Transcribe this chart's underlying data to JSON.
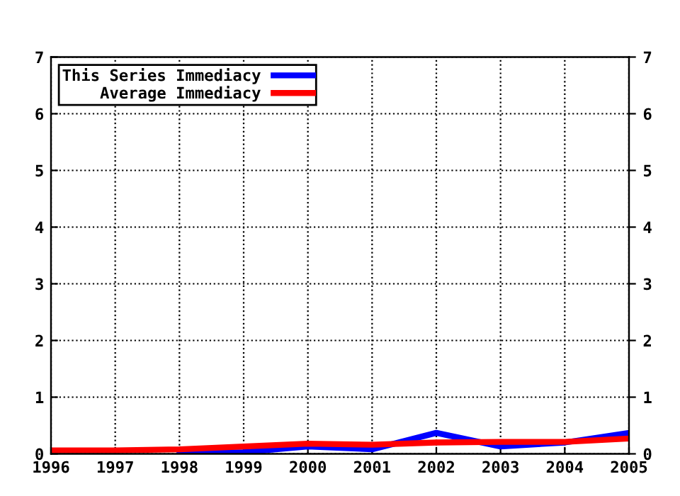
{
  "chart_data": {
    "type": "line",
    "x": [
      1996,
      1997,
      1998,
      1999,
      2000,
      2001,
      2002,
      2003,
      2004,
      2005
    ],
    "series": [
      {
        "name": "This Series Immediacy",
        "color": "#0000ff",
        "values": [
          null,
          null,
          0.02,
          0.03,
          0.13,
          0.08,
          0.37,
          0.13,
          0.2,
          0.37
        ]
      },
      {
        "name": "Average Immediacy",
        "color": "#ff0000",
        "values": [
          0.06,
          0.06,
          0.08,
          0.13,
          0.18,
          0.16,
          0.2,
          0.21,
          0.21,
          0.27
        ]
      }
    ],
    "xlim": [
      1996,
      2005
    ],
    "xticks": [
      1996,
      1997,
      1998,
      1999,
      2000,
      2001,
      2002,
      2003,
      2004,
      2005
    ],
    "ylim": [
      0,
      7
    ],
    "yticks": [
      0,
      1,
      2,
      3,
      4,
      5,
      6,
      7
    ],
    "y2lim": [
      0,
      7
    ],
    "y2ticks": [
      0,
      1,
      2,
      3,
      4,
      5,
      6,
      7
    ],
    "grid": true,
    "legend": "top left",
    "line_style": "solid",
    "marker": "none"
  }
}
